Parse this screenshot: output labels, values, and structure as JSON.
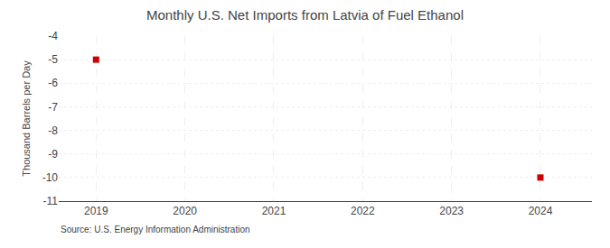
{
  "chart_data": {
    "type": "scatter",
    "title": "Monthly U.S. Net Imports from Latvia of Fuel Ethanol",
    "ylabel": "Thousand Barrels per Day",
    "x": [
      2019.0,
      2024.0
    ],
    "values": [
      -5.0,
      -10.0
    ],
    "color": "#cc0000",
    "marker": "square",
    "xlim": [
      2018.58,
      2024.58
    ],
    "ylim": [
      -11,
      -4
    ],
    "xticks": [
      2019,
      2020,
      2021,
      2022,
      2023,
      2024
    ],
    "yticks": [
      -4,
      -5,
      -6,
      -7,
      -8,
      -9,
      -10,
      -11
    ],
    "grid": true,
    "annotations": [
      "Source: U.S. Energy Information Administration"
    ]
  }
}
